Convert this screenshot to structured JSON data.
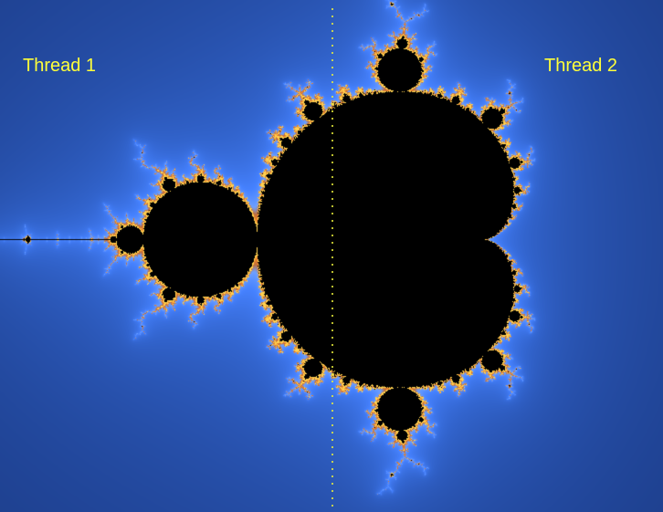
{
  "labels": {
    "left": "Thread 1",
    "right": "Thread 2"
  },
  "colors": {
    "label_text": "#ffff3a",
    "divider": "#e9ee3a",
    "set_interior": "#000000",
    "background_outer": "#0d1b3d",
    "glow_blue": "#3f7cff",
    "edge_orange": "#f08030"
  },
  "divider_style": "dotted"
}
